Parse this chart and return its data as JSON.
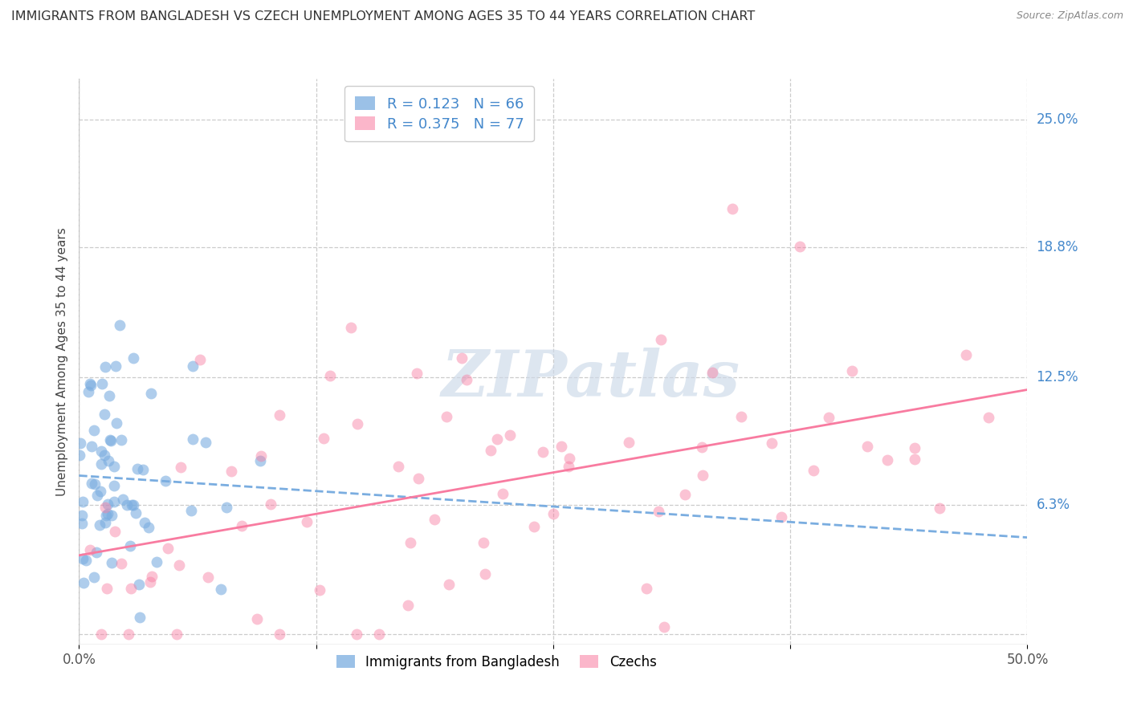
{
  "title": "IMMIGRANTS FROM BANGLADESH VS CZECH UNEMPLOYMENT AMONG AGES 35 TO 44 YEARS CORRELATION CHART",
  "source": "Source: ZipAtlas.com",
  "ylabel": "Unemployment Among Ages 35 to 44 years",
  "xlim": [
    0.0,
    0.5
  ],
  "ylim": [
    -0.005,
    0.27
  ],
  "ytick_vals": [
    0.0,
    0.063,
    0.125,
    0.188,
    0.25
  ],
  "ytick_labels": [
    "",
    "6.3%",
    "12.5%",
    "18.8%",
    "25.0%"
  ],
  "xticks": [
    0.0,
    0.125,
    0.25,
    0.375,
    0.5
  ],
  "xtick_labels": [
    "0.0%",
    "",
    "",
    "",
    "50.0%"
  ],
  "legend_label1": "Immigrants from Bangladesh",
  "legend_label2": "Czechs",
  "color_blue": "#7aade0",
  "color_pink": "#f87ba0",
  "R_blue": 0.123,
  "N_blue": 66,
  "R_pink": 0.375,
  "N_pink": 77,
  "watermark": "ZIPatlas",
  "background_color": "#ffffff",
  "grid_color": "#cccccc",
  "right_label_color": "#4488cc",
  "title_color": "#333333",
  "seed_blue": 7,
  "seed_pink": 15
}
